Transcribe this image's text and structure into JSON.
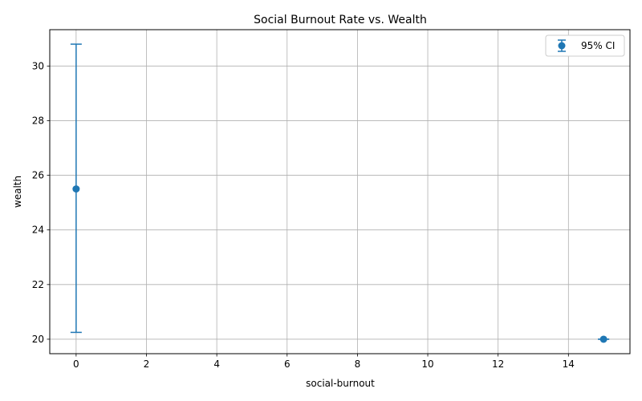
{
  "chart_data": {
    "type": "scatter",
    "title": "Social Burnout Rate vs. Wealth",
    "xlabel": "social-burnout",
    "ylabel": "wealth",
    "xlim": [
      -0.75,
      15.75
    ],
    "ylim": [
      19.47,
      31.33
    ],
    "xticks": [
      0,
      2,
      4,
      6,
      8,
      10,
      12,
      14
    ],
    "yticks": [
      20,
      22,
      24,
      26,
      28,
      30
    ],
    "grid": true,
    "legend_position": "top-right",
    "series": [
      {
        "name": "95% CI",
        "color": "#1f77b4",
        "points": [
          {
            "x": 0,
            "y": 25.5,
            "ci_low": 20.25,
            "ci_high": 30.8
          },
          {
            "x": 15,
            "y": 20.0,
            "ci_low": 20.0,
            "ci_high": 20.0
          }
        ]
      }
    ]
  }
}
